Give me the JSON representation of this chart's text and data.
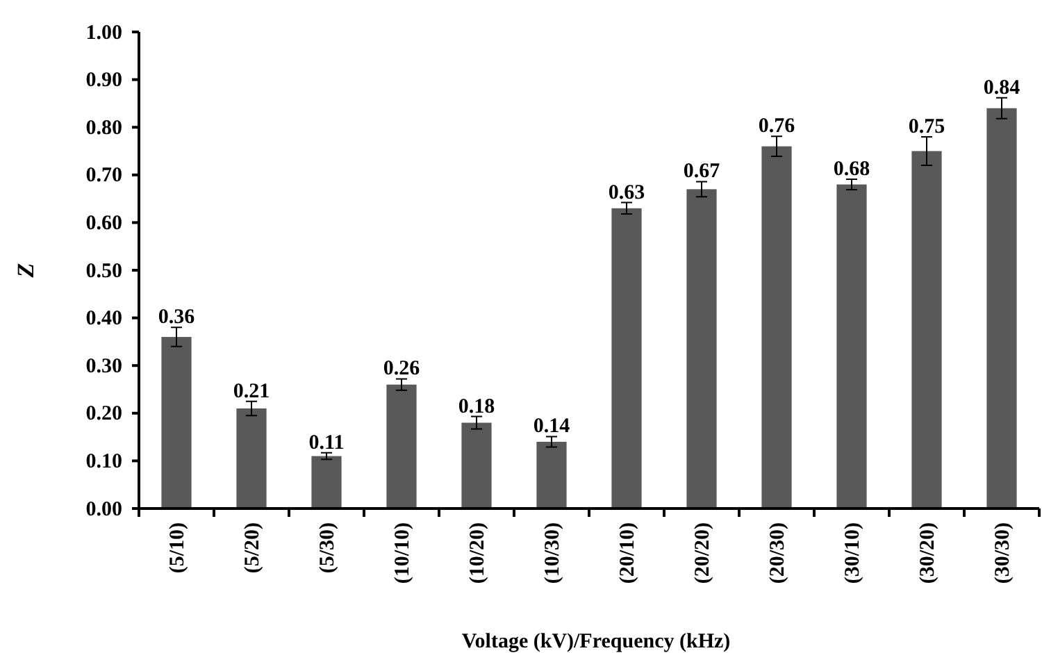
{
  "chart_data": {
    "type": "bar",
    "xlabel": "Voltage (kV)/Frequency (kHz)",
    "ylabel": "Z",
    "categories": [
      "(5/10)",
      "(5/20)",
      "(5/30)",
      "(10/10)",
      "(10/20)",
      "(10/30)",
      "(20/10)",
      "(20/20)",
      "(20/30)",
      "(30/10)",
      "(30/20)",
      "(30/30)"
    ],
    "values": [
      0.36,
      0.21,
      0.11,
      0.26,
      0.18,
      0.14,
      0.63,
      0.67,
      0.76,
      0.68,
      0.75,
      0.84
    ],
    "errors": [
      0.02,
      0.015,
      0.007,
      0.012,
      0.013,
      0.011,
      0.012,
      0.016,
      0.021,
      0.011,
      0.03,
      0.022
    ],
    "color": "#595959",
    "data_labels": true,
    "ylim": [
      0,
      1
    ],
    "yticks": [
      {
        "value": 0,
        "label": "0.00"
      },
      {
        "value": 0.1,
        "label": "0.10"
      },
      {
        "value": 0.2,
        "label": "0.20"
      },
      {
        "value": 0.3,
        "label": "0.30"
      },
      {
        "value": 0.4,
        "label": "0.40"
      },
      {
        "value": 0.5,
        "label": "0.50"
      },
      {
        "value": 0.6,
        "label": "0.60"
      },
      {
        "value": 0.7,
        "label": "0.70"
      },
      {
        "value": 0.8,
        "label": "0.80"
      },
      {
        "value": 0.9,
        "label": "0.90"
      },
      {
        "value": 1,
        "label": "1.00"
      }
    ]
  }
}
